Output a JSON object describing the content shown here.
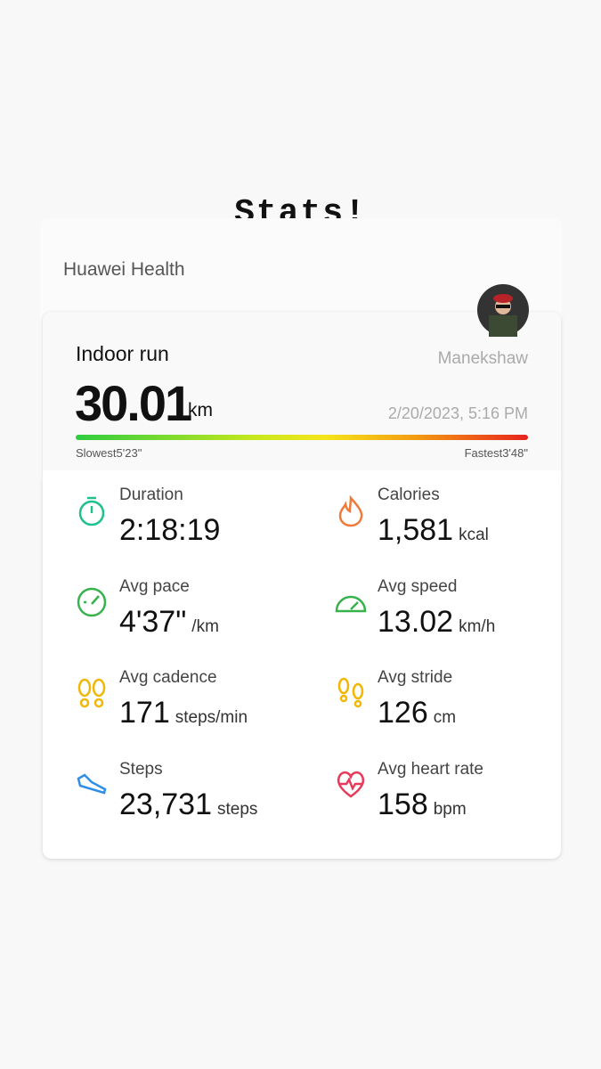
{
  "header": {
    "title": "Stats!",
    "app": "Huawei Health"
  },
  "activity": {
    "type": "Indoor run",
    "user": "Manekshaw",
    "distance": "30.01",
    "distance_unit": "km",
    "date": "2/20/2023, 5:16 PM",
    "slowest_label": "Slowest",
    "slowest": "5'23\"",
    "fastest_label": "Fastest",
    "fastest": "3'48\""
  },
  "metrics": [
    {
      "label": "Duration",
      "value": "2:18:19",
      "unit": null
    },
    {
      "label": "Calories",
      "value": "1,581",
      "unit": "kcal"
    },
    {
      "label": "Avg pace",
      "value": "4'37\"",
      "unit": "/km"
    },
    {
      "label": "Avg speed",
      "value": "13.02",
      "unit": "km/h"
    },
    {
      "label": "Avg cadence",
      "value": "171",
      "unit": "steps/min"
    },
    {
      "label": "Avg stride",
      "value": "126",
      "unit": "cm"
    },
    {
      "label": "Steps",
      "value": "23,731",
      "unit": "steps"
    },
    {
      "label": "Avg heart rate",
      "value": "158",
      "unit": "bpm"
    }
  ]
}
